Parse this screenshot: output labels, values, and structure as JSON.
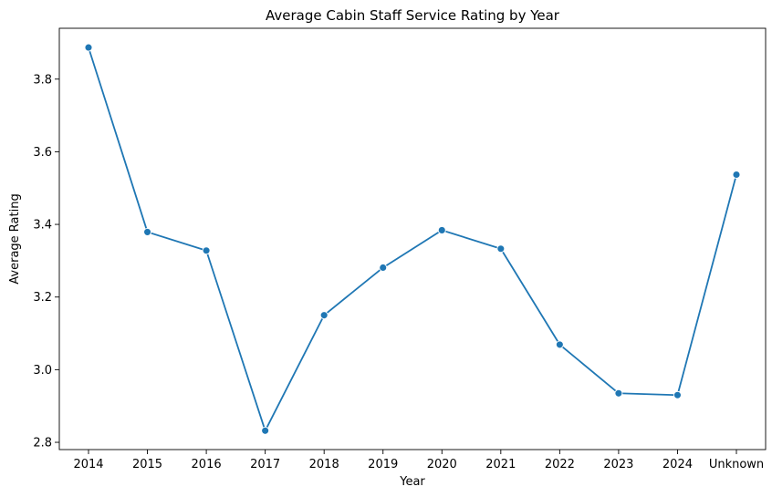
{
  "chart_data": {
    "type": "line",
    "title": "Average Cabin Staff Service Rating by Year",
    "xlabel": "Year",
    "ylabel": "Average Rating",
    "categories": [
      "2014",
      "2015",
      "2016",
      "2017",
      "2018",
      "2019",
      "2020",
      "2021",
      "2022",
      "2023",
      "2024",
      "Unknown"
    ],
    "series": [
      {
        "values": [
          3.887,
          3.379,
          3.328,
          2.832,
          3.15,
          3.281,
          3.384,
          3.333,
          3.069,
          2.935,
          2.93,
          3.537
        ],
        "color": "#1f77b4",
        "marker": "circle"
      }
    ],
    "ylim": [
      2.78,
      3.94
    ],
    "yticks": [
      "2.8",
      "3.0",
      "3.2",
      "3.4",
      "3.6",
      "3.8"
    ],
    "grid": false,
    "legend": "none"
  }
}
